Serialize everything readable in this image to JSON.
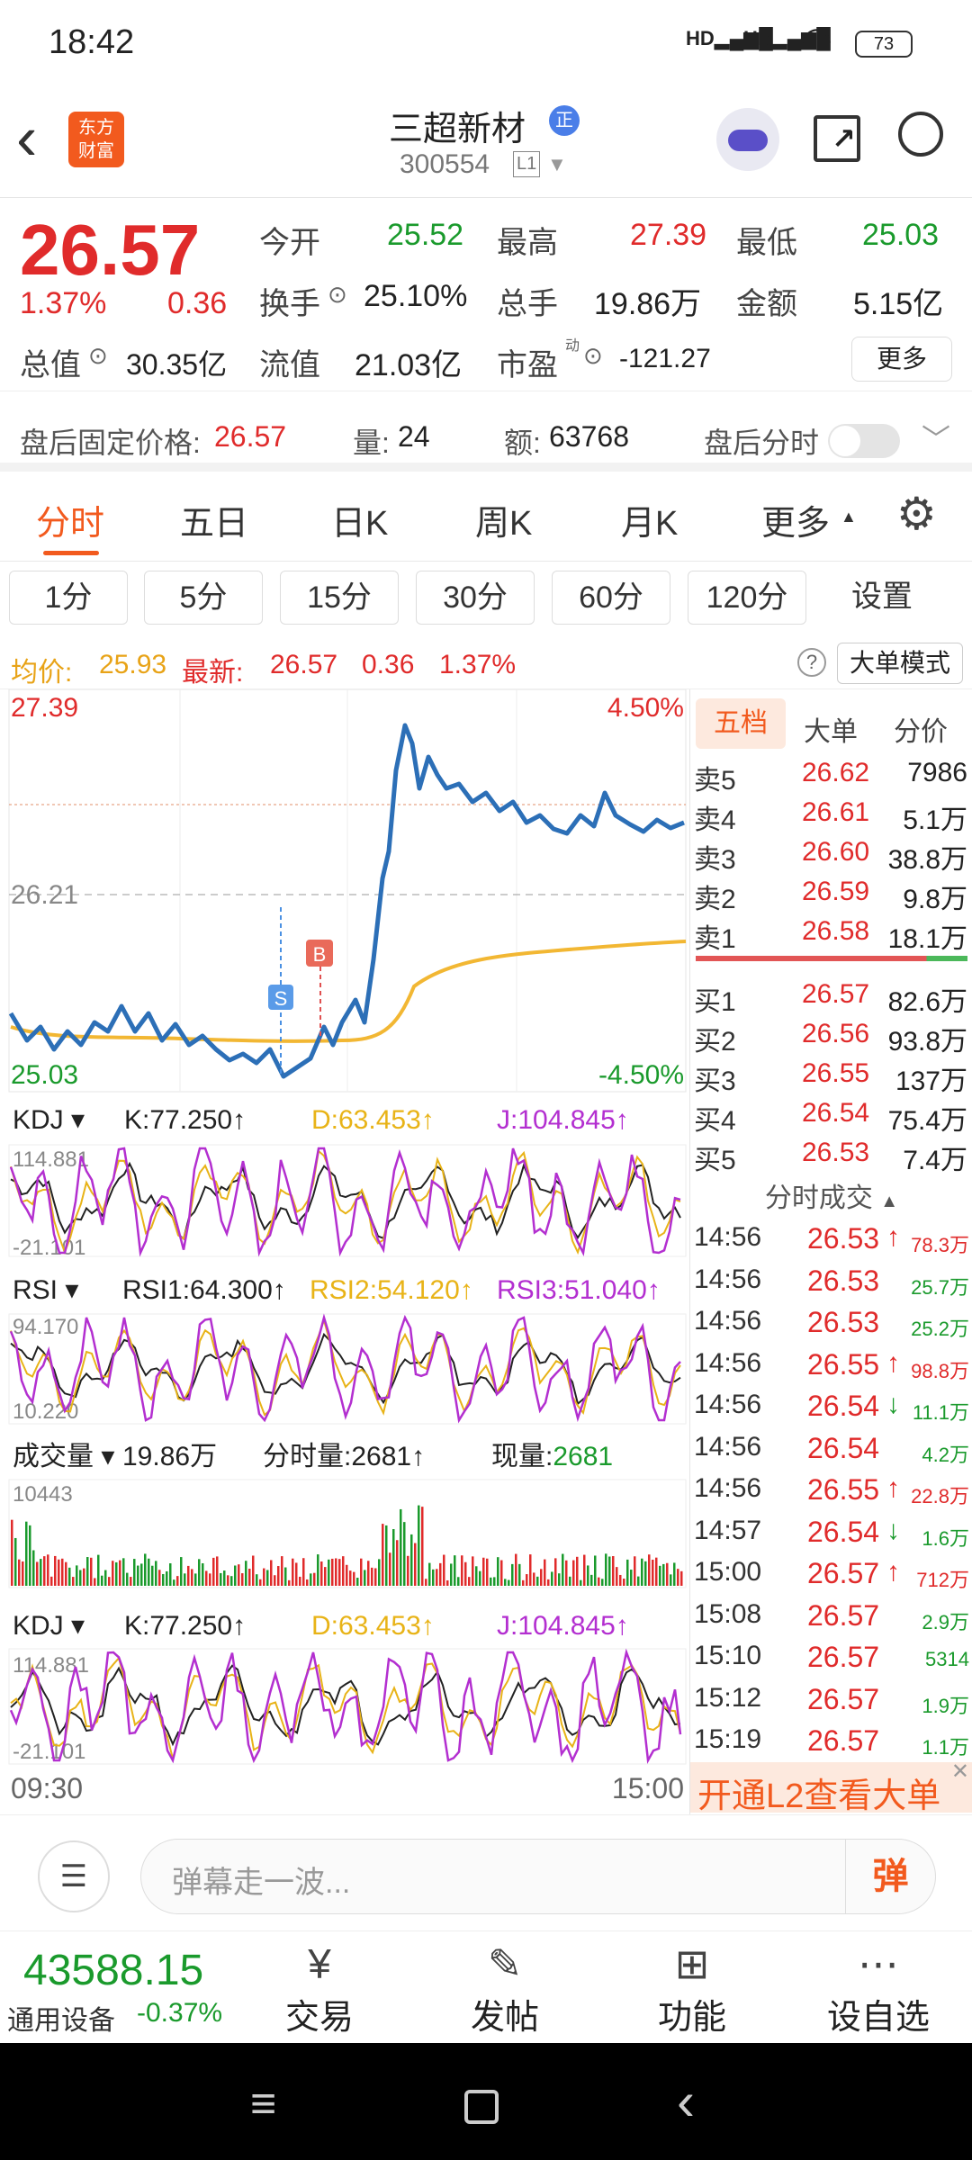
{
  "status": {
    "time": "18:42",
    "battery": "73"
  },
  "header": {
    "logo_line1": "东方",
    "logo_line2": "财富",
    "name": "三超新材",
    "badge": "正",
    "code": "300554",
    "level": "L1"
  },
  "quote": {
    "price": "26.57",
    "pct": "1.37%",
    "change": "0.36",
    "open_label": "今开",
    "open": "25.52",
    "high_label": "最高",
    "high": "27.39",
    "low_label": "最低",
    "low": "25.03",
    "turnover_label": "换手",
    "turnover": "25.10%",
    "volume_label": "总手",
    "volume": "19.86万",
    "amount_label": "金额",
    "amount": "5.15亿",
    "mktcap_label": "总值",
    "mktcap": "30.35亿",
    "float_label": "流值",
    "float": "21.03亿",
    "pe_label": "市盈",
    "pe_sup": "动",
    "pe": "-121.27",
    "more": "更多"
  },
  "afterhours": {
    "label": "盘后固定价格:",
    "price": "26.57",
    "vol_label": "量:",
    "vol": "24",
    "amt_label": "额:",
    "amt": "63768",
    "toggle_label": "盘后分时"
  },
  "tabs": [
    "分时",
    "五日",
    "日K",
    "周K",
    "月K",
    "更多"
  ],
  "intervals": [
    "1分",
    "5分",
    "15分",
    "30分",
    "60分",
    "120分",
    "设置"
  ],
  "avgline": {
    "avg_label": "均价:",
    "avg": "25.93",
    "last_label": "最新:",
    "last": "26.57",
    "chg": "0.36",
    "pct": "1.37%",
    "mode": "大单模式"
  },
  "chart": {
    "ymax": "27.39",
    "ymin": "25.03",
    "pmax": "4.50%",
    "pmin": "-4.50%",
    "mid": "26.21",
    "tstart": "09:30",
    "tend": "15:00",
    "marker_s": "S",
    "marker_b": "B"
  },
  "kdj": {
    "name": "KDJ",
    "k": "K:77.250↑",
    "d": "D:63.453↑",
    "j": "J:104.845↑",
    "top": "114.881",
    "bottom": "-21.101"
  },
  "rsi": {
    "name": "RSI",
    "r1": "RSI1:64.300↑",
    "r2": "RSI2:54.120↑",
    "r3": "RSI3:51.040↑",
    "top": "94.170",
    "bottom": "10.220"
  },
  "vol": {
    "name": "成交量",
    "total": "19.86万",
    "tick_label": "分时量:",
    "tick": "2681↑",
    "now_label": "现量:",
    "now": "2681",
    "top": "10443"
  },
  "book": {
    "tabs": [
      "五档",
      "大单",
      "分价"
    ],
    "asks": [
      {
        "l": "卖5",
        "p": "26.62",
        "v": "7986"
      },
      {
        "l": "卖4",
        "p": "26.61",
        "v": "5.1万"
      },
      {
        "l": "卖3",
        "p": "26.60",
        "v": "38.8万"
      },
      {
        "l": "卖2",
        "p": "26.59",
        "v": "9.8万"
      },
      {
        "l": "卖1",
        "p": "26.58",
        "v": "18.1万"
      }
    ],
    "bids": [
      {
        "l": "买1",
        "p": "26.57",
        "v": "82.6万"
      },
      {
        "l": "买2",
        "p": "26.56",
        "v": "93.8万"
      },
      {
        "l": "买3",
        "p": "26.55",
        "v": "137万"
      },
      {
        "l": "买4",
        "p": "26.54",
        "v": "75.4万"
      },
      {
        "l": "买5",
        "p": "26.53",
        "v": "7.4万"
      }
    ]
  },
  "trades_title": "分时成交",
  "trades": [
    {
      "t": "14:56",
      "p": "26.53",
      "a": "↑",
      "v": "78.3万",
      "c": "red"
    },
    {
      "t": "14:56",
      "p": "26.53",
      "a": "",
      "v": "25.7万",
      "c": "green"
    },
    {
      "t": "14:56",
      "p": "26.53",
      "a": "",
      "v": "25.2万",
      "c": "green"
    },
    {
      "t": "14:56",
      "p": "26.55",
      "a": "↑",
      "v": "98.8万",
      "c": "red"
    },
    {
      "t": "14:56",
      "p": "26.54",
      "a": "↓",
      "v": "11.1万",
      "c": "green"
    },
    {
      "t": "14:56",
      "p": "26.54",
      "a": "",
      "v": "4.2万",
      "c": "green"
    },
    {
      "t": "14:56",
      "p": "26.55",
      "a": "↑",
      "v": "22.8万",
      "c": "red"
    },
    {
      "t": "14:57",
      "p": "26.54",
      "a": "↓",
      "v": "1.6万",
      "c": "green"
    },
    {
      "t": "15:00",
      "p": "26.57",
      "a": "↑",
      "v": "712万",
      "c": "red"
    },
    {
      "t": "15:08",
      "p": "26.57",
      "a": "",
      "v": "2.9万",
      "c": "green"
    },
    {
      "t": "15:10",
      "p": "26.57",
      "a": "",
      "v": "5314",
      "c": "green"
    },
    {
      "t": "15:12",
      "p": "26.57",
      "a": "",
      "v": "1.9万",
      "c": "green"
    },
    {
      "t": "15:19",
      "p": "26.57",
      "a": "",
      "v": "1.1万",
      "c": "green"
    }
  ],
  "l2_banner": "开通L2查看大单",
  "comment_placeholder": "弹幕走一波...",
  "danmu_btn": "弹",
  "bottom": {
    "index_value": "43588.15",
    "index_name": "通用设备",
    "index_pct": "-0.37%",
    "trade": "交易",
    "post": "发帖",
    "func": "功能",
    "watch": "设自选"
  },
  "colors": {
    "up": "#e02b2b",
    "down": "#1a9a2c",
    "price_line": "#2c6fb7",
    "avg_line": "#f2b733",
    "accent": "#f25a1e"
  }
}
